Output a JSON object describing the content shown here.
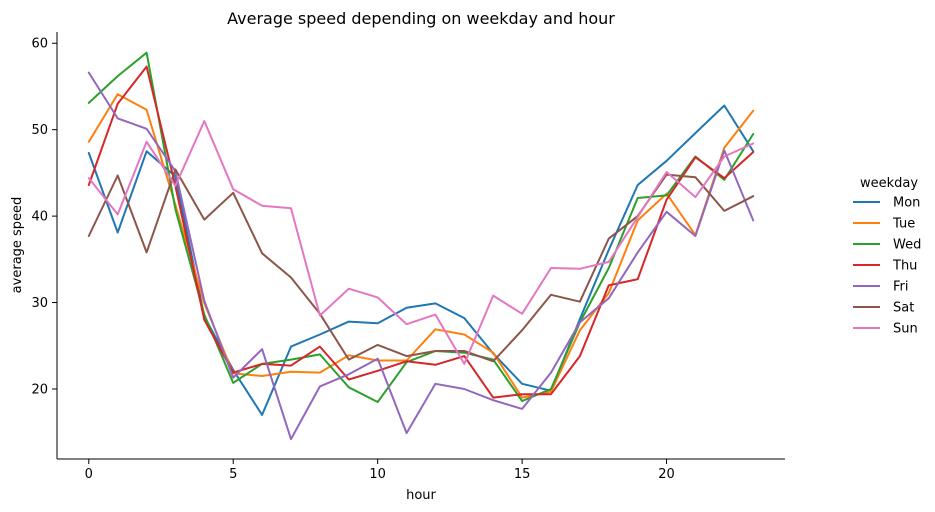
{
  "chart_data": {
    "type": "line",
    "title": "Average speed depending on weekday and hour",
    "xlabel": "hour",
    "ylabel": "average speed",
    "xlim": [
      -1.1,
      24.1
    ],
    "ylim": [
      11.9,
      61.3
    ],
    "xticks": [
      0,
      5,
      10,
      15,
      20
    ],
    "yticks": [
      20,
      30,
      40,
      50,
      60
    ],
    "grid": false,
    "legend_title": "weekday",
    "legend_position": "right",
    "x": [
      0,
      1,
      2,
      3,
      4,
      5,
      6,
      7,
      8,
      9,
      10,
      11,
      12,
      13,
      14,
      15,
      16,
      17,
      18,
      19,
      20,
      21,
      22,
      23
    ],
    "series": [
      {
        "name": "Mon",
        "color": "#1f77b4",
        "values": [
          47.3,
          38.1,
          47.5,
          44.6,
          28.4,
          22.2,
          17.0,
          24.9,
          26.3,
          27.8,
          27.6,
          29.4,
          29.9,
          28.2,
          24.1,
          20.6,
          19.8,
          28.1,
          36.1,
          43.6,
          46.4,
          49.6,
          52.8,
          47.5
        ]
      },
      {
        "name": "Tue",
        "color": "#ff7f0e",
        "values": [
          48.6,
          54.1,
          52.3,
          41.3,
          29.9,
          21.8,
          21.5,
          22.0,
          21.9,
          23.9,
          23.3,
          23.3,
          26.9,
          26.3,
          24.2,
          19.0,
          19.7,
          26.8,
          31.1,
          39.5,
          42.6,
          37.8,
          47.9,
          52.2
        ]
      },
      {
        "name": "Wed",
        "color": "#2ca02c",
        "values": [
          53.1,
          56.2,
          58.9,
          40.8,
          28.6,
          20.7,
          22.9,
          23.4,
          24.0,
          20.2,
          18.5,
          23.1,
          24.4,
          24.2,
          23.4,
          18.6,
          20.0,
          27.7,
          34.0,
          42.1,
          42.4,
          46.9,
          44.2,
          49.5
        ]
      },
      {
        "name": "Thu",
        "color": "#d62728",
        "values": [
          43.6,
          53.0,
          57.3,
          43.5,
          28.0,
          21.9,
          22.9,
          22.7,
          24.9,
          21.1,
          22.1,
          23.2,
          22.8,
          23.8,
          19.0,
          19.4,
          19.4,
          23.8,
          32.0,
          32.7,
          41.9,
          46.8,
          44.4,
          47.4
        ]
      },
      {
        "name": "Fri",
        "color": "#9467bd",
        "values": [
          56.6,
          51.3,
          50.1,
          45.2,
          30.2,
          21.3,
          24.6,
          14.2,
          20.3,
          21.7,
          23.5,
          14.9,
          20.6,
          20.0,
          18.7,
          17.7,
          21.9,
          27.7,
          30.5,
          35.8,
          40.5,
          37.7,
          47.6,
          39.5
        ]
      },
      {
        "name": "Sat",
        "color": "#8c564b",
        "values": [
          37.7,
          44.7,
          35.8,
          45.4,
          39.6,
          42.7,
          35.7,
          32.9,
          28.7,
          23.4,
          25.1,
          23.8,
          24.4,
          24.4,
          23.2,
          26.8,
          30.9,
          30.1,
          37.4,
          40.0,
          44.8,
          44.5,
          40.6,
          42.3
        ]
      },
      {
        "name": "Sun",
        "color": "#e377c2",
        "values": [
          44.4,
          40.2,
          48.6,
          43.5,
          51.0,
          43.1,
          41.2,
          40.9,
          28.5,
          31.6,
          30.6,
          27.5,
          28.6,
          22.9,
          30.8,
          28.7,
          34.0,
          33.9,
          34.7,
          39.9,
          45.1,
          42.2,
          46.9,
          48.4
        ]
      }
    ]
  }
}
